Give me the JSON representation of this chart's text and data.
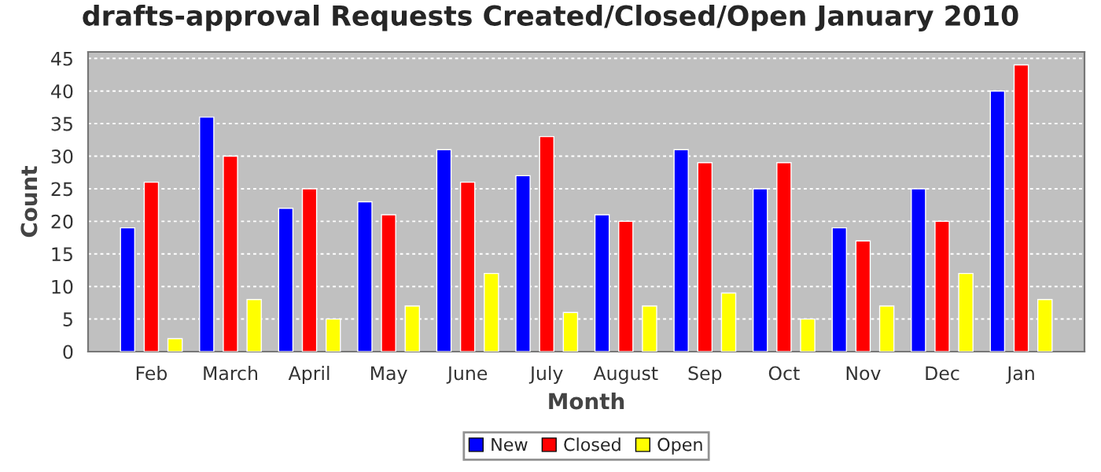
{
  "chart_data": {
    "type": "bar",
    "title": "drafts-approval Requests Created/Closed/Open January 2010",
    "xlabel": "Month",
    "ylabel": "Count",
    "categories": [
      "Feb",
      "March",
      "April",
      "May",
      "June",
      "July",
      "August",
      "Sep",
      "Oct",
      "Nov",
      "Dec",
      "Jan"
    ],
    "series": [
      {
        "name": "New",
        "color": "#0000ff",
        "values": [
          19,
          36,
          22,
          23,
          31,
          27,
          21,
          31,
          25,
          19,
          25,
          40
        ]
      },
      {
        "name": "Closed",
        "color": "#ff0000",
        "values": [
          26,
          30,
          25,
          21,
          26,
          33,
          20,
          29,
          29,
          17,
          20,
          44
        ]
      },
      {
        "name": "Open",
        "color": "#ffff00",
        "values": [
          2,
          8,
          5,
          7,
          12,
          6,
          7,
          9,
          5,
          7,
          12,
          8
        ]
      }
    ],
    "ylim": [
      0,
      46
    ],
    "yticks": [
      0,
      5,
      10,
      15,
      20,
      25,
      30,
      35,
      40,
      45
    ],
    "grid": "y",
    "legend": "bottom"
  }
}
